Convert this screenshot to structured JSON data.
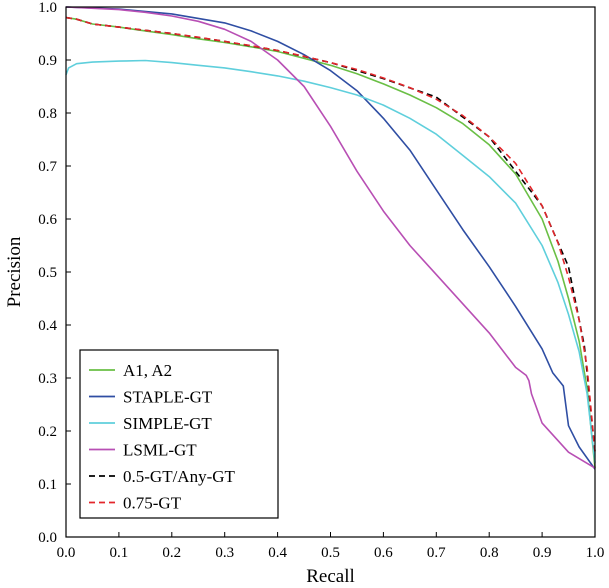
{
  "chart_data": {
    "type": "line",
    "xlabel": "Recall",
    "ylabel": "Precision",
    "xlim": [
      0.0,
      1.0
    ],
    "ylim": [
      0.0,
      1.0
    ],
    "x_ticks": [
      "0.0",
      "0.1",
      "0.2",
      "0.3",
      "0.4",
      "0.5",
      "0.6",
      "0.7",
      "0.8",
      "0.9",
      "1.0"
    ],
    "y_ticks": [
      "0.0",
      "0.1",
      "0.2",
      "0.3",
      "0.4",
      "0.5",
      "0.6",
      "0.7",
      "0.8",
      "0.9",
      "1.0"
    ],
    "grid": false,
    "legend_position": "bottom-left",
    "series": [
      {
        "name": "A1, A2",
        "color": "#6abf45",
        "dash": "solid",
        "x": [
          0.0,
          0.02,
          0.05,
          0.1,
          0.15,
          0.2,
          0.25,
          0.3,
          0.35,
          0.4,
          0.45,
          0.5,
          0.55,
          0.6,
          0.65,
          0.7,
          0.75,
          0.8,
          0.85,
          0.9,
          0.93,
          0.95,
          0.97,
          0.985,
          1.0
        ],
        "y": [
          0.98,
          0.977,
          0.968,
          0.962,
          0.955,
          0.948,
          0.94,
          0.933,
          0.925,
          0.916,
          0.903,
          0.89,
          0.874,
          0.855,
          0.834,
          0.81,
          0.78,
          0.74,
          0.685,
          0.6,
          0.52,
          0.45,
          0.37,
          0.28,
          0.13
        ]
      },
      {
        "name": "STAPLE-GT",
        "color": "#2f4ea3",
        "dash": "solid",
        "x": [
          0.0,
          0.1,
          0.2,
          0.3,
          0.35,
          0.4,
          0.45,
          0.5,
          0.55,
          0.6,
          0.65,
          0.7,
          0.75,
          0.8,
          0.85,
          0.9,
          0.92,
          0.94,
          0.95,
          0.97,
          1.0
        ],
        "y": [
          1.0,
          0.996,
          0.987,
          0.97,
          0.955,
          0.935,
          0.91,
          0.88,
          0.842,
          0.79,
          0.73,
          0.655,
          0.58,
          0.51,
          0.435,
          0.355,
          0.31,
          0.285,
          0.21,
          0.17,
          0.128
        ]
      },
      {
        "name": "SIMPLE-GT",
        "color": "#5fcfdc",
        "dash": "solid",
        "x": [
          0.0,
          0.005,
          0.02,
          0.05,
          0.1,
          0.15,
          0.2,
          0.25,
          0.3,
          0.35,
          0.4,
          0.45,
          0.5,
          0.55,
          0.6,
          0.65,
          0.7,
          0.75,
          0.8,
          0.85,
          0.9,
          0.93,
          0.95,
          0.97,
          0.985,
          1.0
        ],
        "y": [
          0.872,
          0.885,
          0.893,
          0.896,
          0.898,
          0.899,
          0.895,
          0.89,
          0.885,
          0.878,
          0.87,
          0.86,
          0.848,
          0.834,
          0.815,
          0.79,
          0.76,
          0.72,
          0.68,
          0.63,
          0.55,
          0.48,
          0.42,
          0.35,
          0.27,
          0.14
        ]
      },
      {
        "name": "LSML-GT",
        "color": "#b84fb4",
        "dash": "solid",
        "x": [
          0.0,
          0.1,
          0.15,
          0.2,
          0.25,
          0.3,
          0.35,
          0.4,
          0.45,
          0.5,
          0.55,
          0.6,
          0.65,
          0.7,
          0.75,
          0.8,
          0.85,
          0.87,
          0.875,
          0.88,
          0.9,
          0.95,
          1.0
        ],
        "y": [
          1.0,
          0.995,
          0.99,
          0.983,
          0.973,
          0.958,
          0.935,
          0.9,
          0.85,
          0.775,
          0.69,
          0.615,
          0.55,
          0.495,
          0.44,
          0.385,
          0.32,
          0.305,
          0.295,
          0.27,
          0.215,
          0.16,
          0.13
        ]
      },
      {
        "name": "0.5-GT/Any-GT",
        "color": "#000000",
        "dash": "dashed",
        "x": [
          0.0,
          0.02,
          0.05,
          0.1,
          0.2,
          0.3,
          0.4,
          0.5,
          0.6,
          0.7,
          0.8,
          0.9,
          0.95,
          0.98,
          1.0
        ],
        "y": [
          0.98,
          0.977,
          0.968,
          0.962,
          0.95,
          0.935,
          0.918,
          0.895,
          0.865,
          0.83,
          0.755,
          0.625,
          0.51,
          0.36,
          0.16
        ]
      },
      {
        "name": "0.75-GT",
        "color": "#e3262b",
        "dash": "dashed",
        "x": [
          0.0,
          0.02,
          0.05,
          0.1,
          0.15,
          0.2,
          0.25,
          0.3,
          0.35,
          0.4,
          0.45,
          0.5,
          0.55,
          0.6,
          0.65,
          0.7,
          0.75,
          0.8,
          0.85,
          0.9,
          0.93,
          0.95,
          0.97,
          0.985,
          1.0
        ],
        "y": [
          0.98,
          0.977,
          0.968,
          0.962,
          0.956,
          0.95,
          0.943,
          0.935,
          0.927,
          0.918,
          0.907,
          0.895,
          0.882,
          0.866,
          0.848,
          0.826,
          0.795,
          0.755,
          0.705,
          0.625,
          0.555,
          0.49,
          0.41,
          0.32,
          0.16
        ]
      }
    ]
  }
}
